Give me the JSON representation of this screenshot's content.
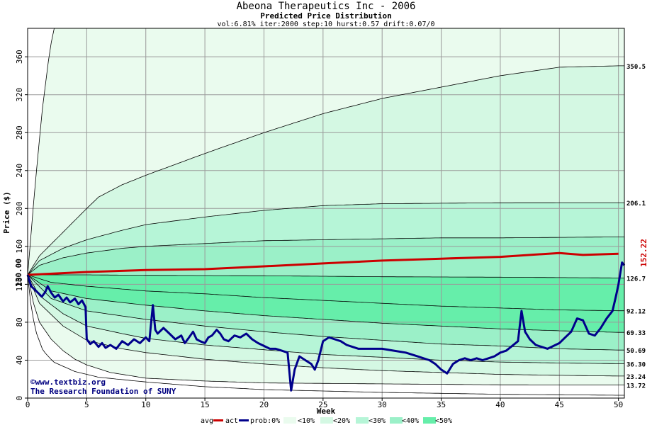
{
  "header": {
    "title": "Abeona Therapeutics Inc - 2006",
    "subtitle": "Predicted Price Distribution",
    "params": "vol:6.81% iter:2000 step:10 hurst:0.57 drift:0.07/0"
  },
  "watermark": {
    "line1": "©www.textbiz.org",
    "line2": "The Research Foundation of SUNY"
  },
  "colors": {
    "avg": "#cc0000",
    "act": "#00008b",
    "band10": "#eafbee",
    "band20": "#d4f8e3",
    "band30": "#b6f5d7",
    "band40": "#9bf0c8",
    "band50": "#66eeaa",
    "grid": "#9a9a9a"
  },
  "legend": {
    "avg": "avg",
    "act": "act",
    "prob": "prob:0%",
    "b10": "<10%",
    "b20": "<20%",
    "b30": "<30%",
    "b40": "<40%",
    "b50": "<50%"
  },
  "chart_data": {
    "type": "area",
    "xlabel": "Week",
    "ylabel": "Price ($)",
    "xlim": [
      0,
      50.5
    ],
    "ylim": [
      0,
      390
    ],
    "x_ticks": [
      0,
      5,
      10,
      15,
      20,
      25,
      30,
      35,
      40,
      45,
      50
    ],
    "y_ticks": [
      0,
      40,
      80,
      120,
      160,
      200,
      240,
      280,
      320,
      360
    ],
    "start_label": "130.00",
    "end_label": "152.22",
    "right_labels": [
      "350.5",
      "206.1",
      "126.7",
      "92.12",
      "69.33",
      "50.69",
      "36.30",
      "23.24",
      "13.72"
    ],
    "percentile_curves": [
      {
        "name": "upper-extreme",
        "points": [
          [
            0,
            130
          ],
          [
            0.6,
            220
          ],
          [
            1.2,
            300
          ],
          [
            1.8,
            360
          ],
          [
            2.2,
            390
          ]
        ]
      },
      {
        "name": "upper-10",
        "points": [
          [
            0,
            130
          ],
          [
            1,
            150
          ],
          [
            3,
            175
          ],
          [
            5,
            200
          ],
          [
            6,
            212
          ],
          [
            8,
            225
          ],
          [
            10,
            235
          ],
          [
            15,
            258
          ],
          [
            20,
            280
          ],
          [
            25,
            300
          ],
          [
            30,
            316
          ],
          [
            35,
            328
          ],
          [
            40,
            340
          ],
          [
            45,
            349
          ],
          [
            50,
            350.5
          ]
        ]
      },
      {
        "name": "upper-20",
        "points": [
          [
            0,
            130
          ],
          [
            1,
            145
          ],
          [
            3,
            158
          ],
          [
            5,
            167
          ],
          [
            8,
            177
          ],
          [
            10,
            183
          ],
          [
            15,
            191
          ],
          [
            20,
            198
          ],
          [
            25,
            203
          ],
          [
            30,
            205
          ],
          [
            35,
            205.5
          ],
          [
            40,
            206
          ],
          [
            45,
            206.1
          ],
          [
            50,
            206.1
          ]
        ]
      },
      {
        "name": "upper-30",
        "points": [
          [
            0,
            130
          ],
          [
            1,
            140
          ],
          [
            3,
            148
          ],
          [
            5,
            153
          ],
          [
            8,
            158
          ],
          [
            10,
            160
          ],
          [
            15,
            163
          ],
          [
            20,
            166
          ],
          [
            25,
            167
          ],
          [
            30,
            168
          ],
          [
            35,
            169
          ],
          [
            40,
            169
          ],
          [
            45,
            169.5
          ],
          [
            50,
            170
          ]
        ]
      },
      {
        "name": "mid-126.7",
        "points": [
          [
            0,
            130
          ],
          [
            5,
            130
          ],
          [
            10,
            129.5
          ],
          [
            20,
            129
          ],
          [
            30,
            128
          ],
          [
            40,
            127.5
          ],
          [
            50,
            126.7
          ]
        ]
      },
      {
        "name": "lower-92.12",
        "points": [
          [
            0,
            130
          ],
          [
            2,
            122
          ],
          [
            5,
            118
          ],
          [
            10,
            113
          ],
          [
            15,
            110
          ],
          [
            20,
            106
          ],
          [
            25,
            103
          ],
          [
            30,
            100
          ],
          [
            35,
            97
          ],
          [
            40,
            95
          ],
          [
            45,
            93
          ],
          [
            50,
            92.12
          ]
        ]
      },
      {
        "name": "lower-69.33",
        "points": [
          [
            0,
            130
          ],
          [
            2,
            113
          ],
          [
            5,
            105
          ],
          [
            10,
            98
          ],
          [
            15,
            92
          ],
          [
            20,
            87
          ],
          [
            25,
            83
          ],
          [
            30,
            79
          ],
          [
            35,
            76
          ],
          [
            40,
            73
          ],
          [
            45,
            71
          ],
          [
            50,
            69.33
          ]
        ]
      },
      {
        "name": "lower-50.69",
        "points": [
          [
            0,
            130
          ],
          [
            2,
            105
          ],
          [
            5,
            92
          ],
          [
            10,
            83
          ],
          [
            15,
            76
          ],
          [
            20,
            70
          ],
          [
            25,
            65
          ],
          [
            30,
            61
          ],
          [
            35,
            57
          ],
          [
            40,
            55
          ],
          [
            45,
            52
          ],
          [
            50,
            50.69
          ]
        ]
      },
      {
        "name": "lower-36.30",
        "points": [
          [
            0,
            130
          ],
          [
            1,
            108
          ],
          [
            3,
            89
          ],
          [
            5,
            76
          ],
          [
            8,
            68
          ],
          [
            10,
            63
          ],
          [
            15,
            56
          ],
          [
            20,
            51
          ],
          [
            25,
            46
          ],
          [
            30,
            43
          ],
          [
            35,
            40
          ],
          [
            40,
            38
          ],
          [
            45,
            37
          ],
          [
            50,
            36.3
          ]
        ]
      },
      {
        "name": "lower-23.24",
        "points": [
          [
            0,
            130
          ],
          [
            1,
            100
          ],
          [
            3,
            76
          ],
          [
            5,
            61
          ],
          [
            8,
            52
          ],
          [
            10,
            48
          ],
          [
            15,
            41
          ],
          [
            20,
            36
          ],
          [
            25,
            32
          ],
          [
            30,
            29
          ],
          [
            35,
            27
          ],
          [
            40,
            25
          ],
          [
            45,
            24
          ],
          [
            50,
            23.24
          ]
        ]
      },
      {
        "name": "lower-13.72",
        "points": [
          [
            0,
            130
          ],
          [
            0.5,
            100
          ],
          [
            1,
            80
          ],
          [
            2,
            62
          ],
          [
            3,
            50
          ],
          [
            4,
            41
          ],
          [
            5,
            35
          ],
          [
            7,
            27
          ],
          [
            10,
            21
          ],
          [
            15,
            18
          ],
          [
            20,
            16
          ],
          [
            30,
            15
          ],
          [
            40,
            14
          ],
          [
            50,
            13.72
          ]
        ]
      },
      {
        "name": "lower-extreme",
        "points": [
          [
            0,
            130
          ],
          [
            0.3,
            95
          ],
          [
            0.7,
            70
          ],
          [
            1.3,
            50
          ],
          [
            2.2,
            38
          ],
          [
            4,
            28
          ],
          [
            6,
            22
          ],
          [
            10,
            17
          ],
          [
            15,
            12
          ],
          [
            20,
            9
          ],
          [
            30,
            6
          ],
          [
            40,
            4
          ],
          [
            50,
            3
          ]
        ]
      }
    ],
    "series": [
      {
        "name": "avg",
        "points": [
          [
            0,
            130
          ],
          [
            5,
            133
          ],
          [
            10,
            135
          ],
          [
            15,
            136
          ],
          [
            20,
            139
          ],
          [
            25,
            142
          ],
          [
            30,
            145
          ],
          [
            35,
            147
          ],
          [
            40,
            149
          ],
          [
            45,
            153
          ],
          [
            47,
            151
          ],
          [
            50,
            152.2
          ]
        ]
      },
      {
        "name": "act",
        "points": [
          [
            0,
            130
          ],
          [
            0.3,
            118
          ],
          [
            0.8,
            112
          ],
          [
            1.2,
            107
          ],
          [
            1.5,
            112
          ],
          [
            1.7,
            118
          ],
          [
            2,
            111
          ],
          [
            2.3,
            106
          ],
          [
            2.6,
            109
          ],
          [
            3,
            102
          ],
          [
            3.3,
            106
          ],
          [
            3.6,
            101
          ],
          [
            4,
            105
          ],
          [
            4.3,
            99
          ],
          [
            4.6,
            103
          ],
          [
            4.9,
            96
          ],
          [
            5,
            62
          ],
          [
            5.3,
            57
          ],
          [
            5.6,
            60
          ],
          [
            6,
            54
          ],
          [
            6.3,
            58
          ],
          [
            6.6,
            53
          ],
          [
            7,
            56
          ],
          [
            7.5,
            52
          ],
          [
            8,
            60
          ],
          [
            8.5,
            56
          ],
          [
            9,
            62
          ],
          [
            9.5,
            58
          ],
          [
            10,
            64
          ],
          [
            10.3,
            60
          ],
          [
            10.6,
            98
          ],
          [
            10.8,
            72
          ],
          [
            11,
            68
          ],
          [
            11.5,
            74
          ],
          [
            12,
            68
          ],
          [
            12.5,
            62
          ],
          [
            13,
            66
          ],
          [
            13.3,
            58
          ],
          [
            13.6,
            63
          ],
          [
            14,
            70
          ],
          [
            14.3,
            62
          ],
          [
            14.6,
            60
          ],
          [
            15,
            58
          ],
          [
            15.3,
            64
          ],
          [
            15.6,
            66
          ],
          [
            16,
            72
          ],
          [
            16.3,
            68
          ],
          [
            16.6,
            62
          ],
          [
            17,
            60
          ],
          [
            17.5,
            66
          ],
          [
            18,
            64
          ],
          [
            18.5,
            68
          ],
          [
            19,
            62
          ],
          [
            19.5,
            58
          ],
          [
            20,
            55
          ],
          [
            20.5,
            52
          ],
          [
            21,
            52
          ],
          [
            21.5,
            50
          ],
          [
            22,
            48
          ],
          [
            22.3,
            8
          ],
          [
            22.6,
            30
          ],
          [
            23,
            44
          ],
          [
            23.5,
            40
          ],
          [
            24,
            36
          ],
          [
            24.3,
            30
          ],
          [
            24.6,
            40
          ],
          [
            25,
            60
          ],
          [
            25.5,
            64
          ],
          [
            26,
            62
          ],
          [
            26.5,
            60
          ],
          [
            27,
            56
          ],
          [
            27.5,
            54
          ],
          [
            28,
            52
          ],
          [
            29,
            52
          ],
          [
            30,
            52
          ],
          [
            31,
            50
          ],
          [
            32,
            48
          ],
          [
            33,
            44
          ],
          [
            34,
            40
          ],
          [
            34.5,
            36
          ],
          [
            35,
            30
          ],
          [
            35.5,
            26
          ],
          [
            36,
            36
          ],
          [
            36.5,
            40
          ],
          [
            37,
            42
          ],
          [
            37.5,
            40
          ],
          [
            38,
            42
          ],
          [
            38.5,
            40
          ],
          [
            39,
            42
          ],
          [
            39.5,
            44
          ],
          [
            40,
            48
          ],
          [
            40.5,
            50
          ],
          [
            41,
            55
          ],
          [
            41.5,
            60
          ],
          [
            41.8,
            92
          ],
          [
            42.1,
            70
          ],
          [
            42.5,
            62
          ],
          [
            43,
            56
          ],
          [
            43.5,
            54
          ],
          [
            44,
            52
          ],
          [
            44.5,
            55
          ],
          [
            45,
            58
          ],
          [
            45.5,
            64
          ],
          [
            46,
            70
          ],
          [
            46.5,
            84
          ],
          [
            47,
            82
          ],
          [
            47.5,
            68
          ],
          [
            48,
            66
          ],
          [
            48.5,
            74
          ],
          [
            49,
            84
          ],
          [
            49.5,
            92
          ],
          [
            49.8,
            108
          ],
          [
            50,
            120
          ],
          [
            50.3,
            143
          ],
          [
            50.5,
            140
          ]
        ]
      }
    ]
  }
}
